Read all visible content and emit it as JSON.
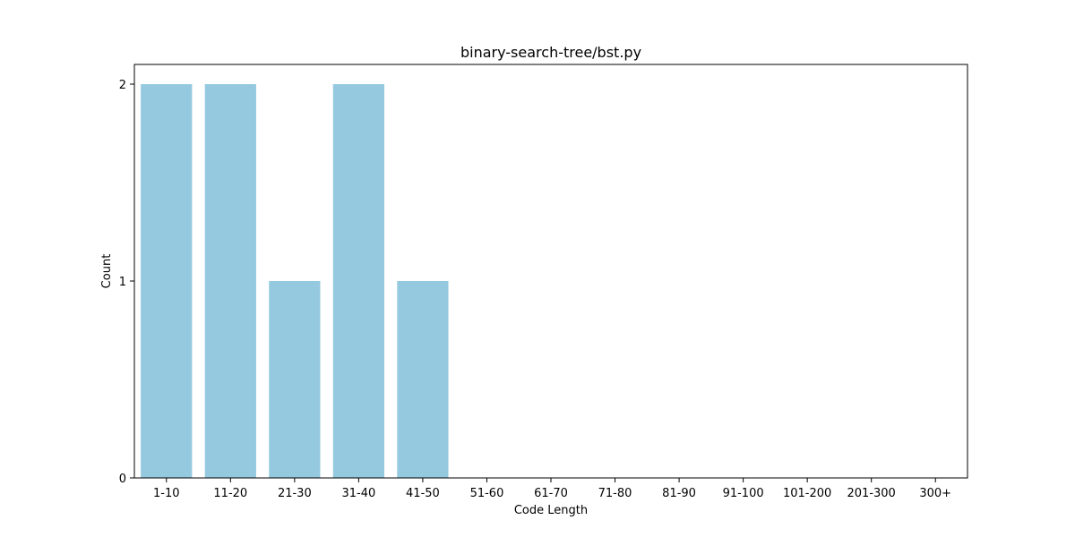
{
  "chart_data": {
    "type": "bar",
    "title": "binary-search-tree/bst.py",
    "xlabel": "Code Length",
    "ylabel": "Count",
    "categories": [
      "1-10",
      "11-20",
      "21-30",
      "31-40",
      "41-50",
      "51-60",
      "61-70",
      "71-80",
      "81-90",
      "91-100",
      "101-200",
      "201-300",
      "300+"
    ],
    "values": [
      2,
      2,
      1,
      2,
      1,
      0,
      0,
      0,
      0,
      0,
      0,
      0,
      0
    ],
    "ylim": [
      0,
      2.1
    ],
    "yticks": [
      0,
      1,
      2
    ],
    "grid": false,
    "legend": "none",
    "bar_color": "#95c9df"
  }
}
